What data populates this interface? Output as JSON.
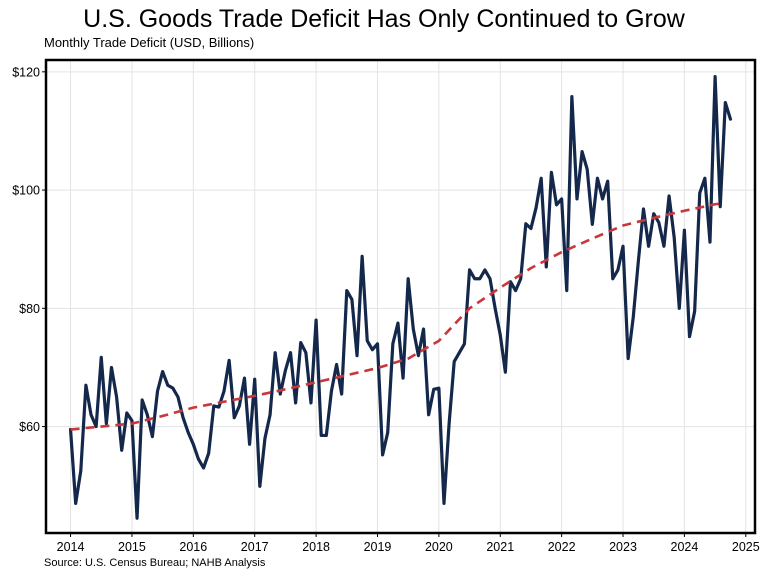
{
  "chart_data": {
    "type": "line",
    "title": "U.S. Goods Trade Deficit Has Only Continued to Grow",
    "subtitle": "Monthly Trade Deficit (USD, Billions)",
    "source": "Source: U.S. Census Bureau; NAHB Analysis",
    "xlabel": "",
    "ylabel": "",
    "xlim": [
      2013.6,
      2025.15
    ],
    "ylim": [
      42,
      122
    ],
    "x_ticks": [
      2014,
      2015,
      2016,
      2017,
      2018,
      2019,
      2020,
      2021,
      2022,
      2023,
      2024,
      2025
    ],
    "x_tick_labels": [
      "2014",
      "2015",
      "2016",
      "2017",
      "2018",
      "2019",
      "2020",
      "2021",
      "2022",
      "2023",
      "2024",
      "2025"
    ],
    "y_ticks": [
      60,
      80,
      100,
      120
    ],
    "y_tick_labels": [
      "$60",
      "$80",
      "$100",
      "$120"
    ],
    "grid": true,
    "legend": "none",
    "colors": {
      "series": "#14284b",
      "trend": "#c8373a"
    },
    "series": [
      {
        "style": "solid",
        "x_start": "2014-01",
        "x_step": "1 month",
        "values": [
          59.5,
          47.0,
          52.5,
          67.0,
          62.0,
          60.0,
          71.7,
          60.5,
          70.0,
          65.0,
          56.0,
          62.3,
          61.0,
          44.5,
          64.5,
          62.0,
          58.3,
          66.0,
          69.3,
          67.0,
          66.5,
          65.0,
          61.5,
          59.0,
          57.0,
          54.5,
          53.0,
          55.5,
          63.5,
          63.3,
          66.0,
          71.2,
          61.5,
          63.5,
          68.2,
          57.0,
          68.0,
          49.9,
          58.0,
          62.0,
          72.5,
          65.5,
          69.5,
          72.5,
          64.0,
          74.2,
          72.5,
          64.0,
          78.0,
          58.5,
          58.5,
          66.0,
          70.5,
          65.5,
          83.0,
          81.5,
          72.0,
          88.8,
          74.5,
          73.0,
          74.0,
          55.2,
          59.0,
          74.0,
          77.5,
          68.2,
          85.0,
          76.5,
          72.0,
          76.5,
          62.0,
          66.3,
          66.5,
          47.0,
          60.5,
          71.0,
          72.5,
          74.0,
          86.5,
          85.0,
          85.0,
          86.5,
          85.0,
          80.0,
          75.5,
          69.2,
          84.5,
          83.0,
          85.0,
          94.3,
          93.5,
          97.0,
          102.0,
          87.0,
          103.0,
          97.5,
          98.5,
          83.0,
          115.8,
          98.5,
          106.5,
          103.5,
          94.2,
          102.0,
          98.5,
          101.5,
          85.0,
          86.5,
          90.5,
          71.5,
          78.5,
          88.0,
          96.8,
          90.5,
          96.0,
          94.5,
          90.5,
          99.0,
          92.0,
          80.0,
          93.2,
          75.2,
          79.5,
          99.5,
          102.0,
          91.2,
          119.2,
          97.2,
          114.8,
          112.0
        ]
      },
      {
        "style": "dashed",
        "x": [
          2014.0,
          2014.5,
          2015.0,
          2015.5,
          2016.0,
          2016.5,
          2017.0,
          2017.5,
          2018.0,
          2018.5,
          2019.0,
          2019.5,
          2020.0,
          2020.5,
          2021.0,
          2021.5,
          2022.0,
          2022.5,
          2023.0,
          2023.5,
          2024.0,
          2024.5,
          2024.65
        ],
        "values": [
          59.5,
          60.0,
          60.5,
          61.8,
          63.2,
          64.2,
          65.2,
          66.3,
          67.5,
          68.7,
          69.9,
          71.5,
          74.5,
          80.0,
          83.5,
          86.8,
          89.5,
          91.8,
          94.0,
          95.3,
          96.5,
          97.6,
          97.8
        ]
      }
    ]
  }
}
